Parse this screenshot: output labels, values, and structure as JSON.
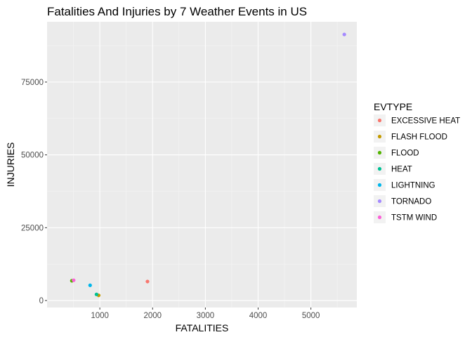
{
  "chart_data": {
    "type": "scatter",
    "title": "Fatalities And Injuries by 7 Weather Events in US",
    "xlabel": "FATALITIES",
    "ylabel": "INJURIES",
    "xlim": [
      0,
      5870
    ],
    "ylim": [
      -2400,
      95700
    ],
    "x_ticks": [
      1000,
      2000,
      3000,
      4000,
      5000
    ],
    "y_ticks": [
      0,
      25000,
      50000,
      75000
    ],
    "x_tick_labels": [
      "1000",
      "2000",
      "3000",
      "4000",
      "5000"
    ],
    "y_tick_labels": [
      "0",
      "25000",
      "50000",
      "75000"
    ],
    "grid": true,
    "legend": {
      "title": "EVTYPE",
      "position": "right"
    },
    "series": [
      {
        "name": "EXCESSIVE HEAT",
        "color": "#F8766D",
        "x": 1903,
        "y": 6525
      },
      {
        "name": "FLASH FLOOD",
        "color": "#C49A00",
        "x": 978,
        "y": 1777
      },
      {
        "name": "FLOOD",
        "color": "#53B400",
        "x": 470,
        "y": 6789
      },
      {
        "name": "HEAT",
        "color": "#00C094",
        "x": 937,
        "y": 2100
      },
      {
        "name": "LIGHTNING",
        "color": "#00B6EB",
        "x": 816,
        "y": 5230
      },
      {
        "name": "TORNADO",
        "color": "#A58AFF",
        "x": 5633,
        "y": 91346
      },
      {
        "name": "TSTM WIND",
        "color": "#FB61D7",
        "x": 504,
        "y": 6957
      }
    ]
  }
}
